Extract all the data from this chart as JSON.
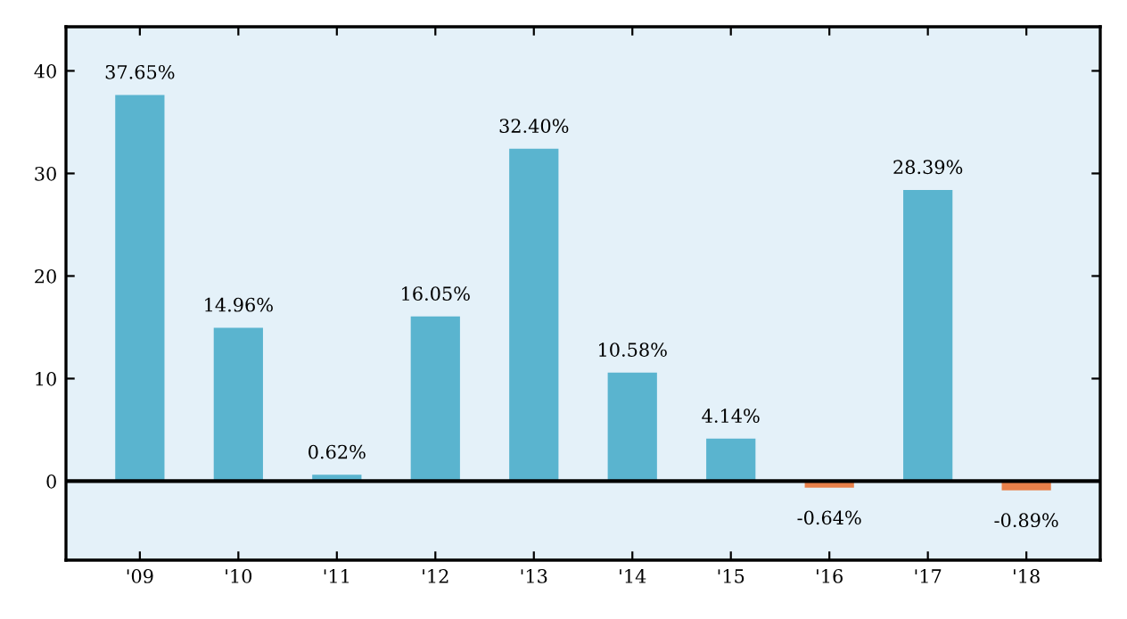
{
  "chart_data": {
    "type": "bar",
    "categories": [
      "'09",
      "'10",
      "'11",
      "'12",
      "'13",
      "'14",
      "'15",
      "'16",
      "'17",
      "'18"
    ],
    "values": [
      37.65,
      14.96,
      0.62,
      16.05,
      32.4,
      10.58,
      4.14,
      -0.64,
      28.39,
      -0.89
    ],
    "value_labels": [
      "37.65%",
      "14.96%",
      "0.62%",
      "16.05%",
      "32.40%",
      "10.58%",
      "4.14%",
      "-0.64%",
      "28.39%",
      "-0.89%"
    ],
    "colors": [
      "#5ab4cf",
      "#5ab4cf",
      "#5ab4cf",
      "#5ab4cf",
      "#5ab4cf",
      "#5ab4cf",
      "#5ab4cf",
      "#e8804a",
      "#5ab4cf",
      "#e8804a"
    ],
    "ylim": [
      -7.7,
      44.3
    ],
    "yticks": [
      0,
      10,
      20,
      30,
      40
    ],
    "ref_lines": [
      {
        "axis": "y",
        "value": 0,
        "color": "#000000"
      }
    ],
    "grid": false,
    "legend": false
  }
}
